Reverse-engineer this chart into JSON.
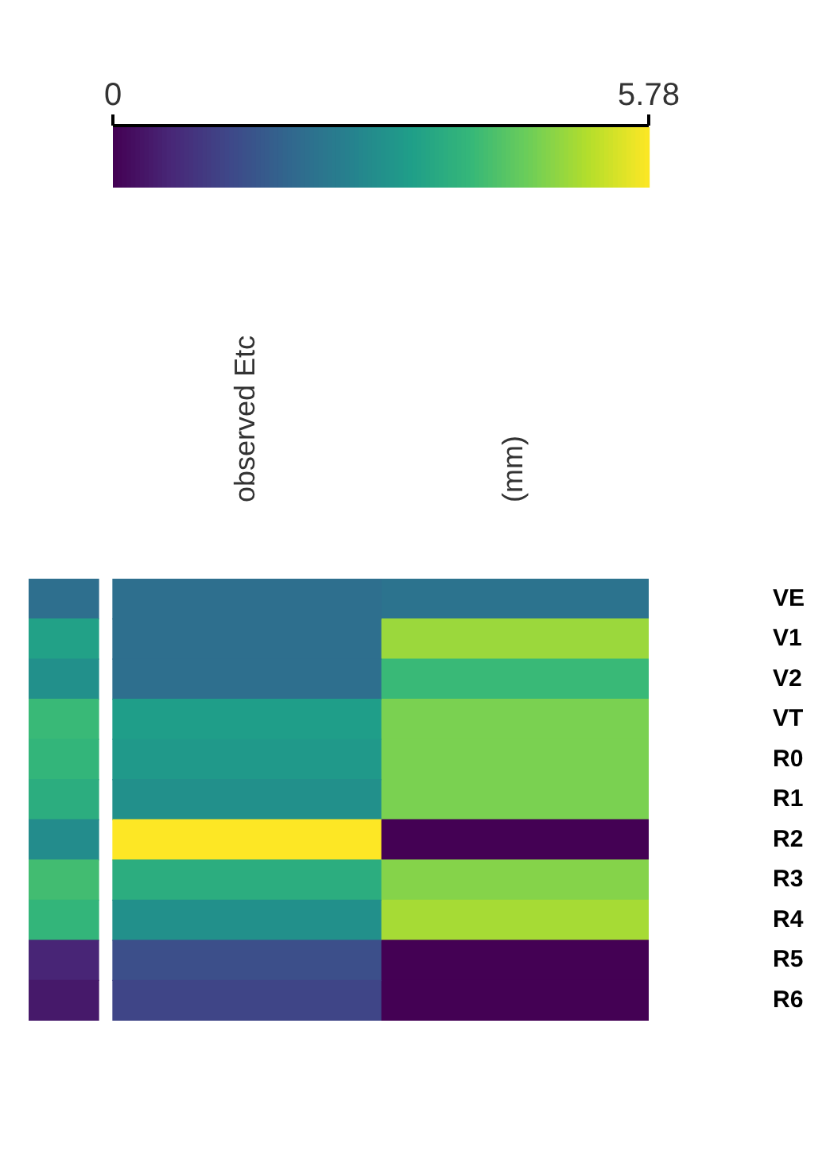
{
  "chart_data": {
    "type": "heatmap",
    "categories": [
      null,
      "observed Etc",
      "(mm)"
    ],
    "y_categories": [
      "VE",
      "V1",
      "V2",
      "VT",
      "R0",
      "R1",
      "R2",
      "R3",
      "R4",
      "R5",
      "R6"
    ],
    "clim": [
      0,
      5.78
    ],
    "cticks": [
      0,
      5.78
    ],
    "cells": [
      [
        2.1,
        2.1,
        2.2
      ],
      [
        3.3,
        2.1,
        4.9
      ],
      [
        2.9,
        2.1,
        3.9
      ],
      [
        3.9,
        3.2,
        4.6
      ],
      [
        3.8,
        3.1,
        4.6
      ],
      [
        3.6,
        2.9,
        4.6
      ],
      [
        2.8,
        5.78,
        0
      ],
      [
        4.0,
        3.6,
        4.7
      ],
      [
        3.8,
        2.9,
        5.0
      ],
      [
        0.6,
        1.4,
        0
      ],
      [
        0.4,
        1.2,
        0
      ]
    ]
  }
}
